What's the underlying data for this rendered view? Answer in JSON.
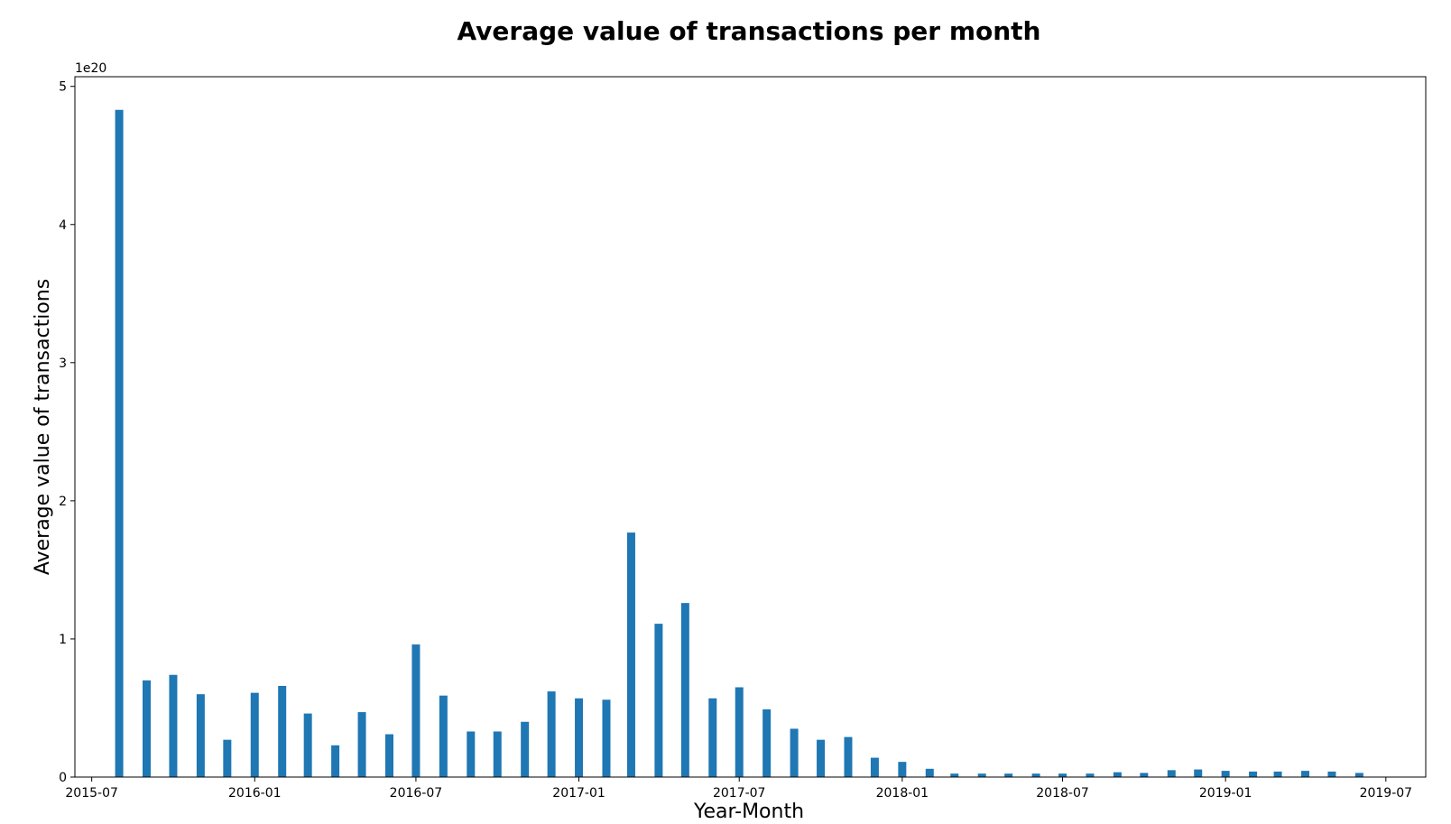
{
  "chart_data": {
    "type": "bar",
    "title": "Average value of transactions per month",
    "xlabel": "Year-Month",
    "ylabel": "Average value of transactions",
    "y_offset_label": "1e20",
    "y_multiplier": 1e+20,
    "ylim": [
      0,
      5.07
    ],
    "xlim": [
      "2015-06-12",
      "2019-08-15"
    ],
    "grid": false,
    "bar_color": "#1f77b4",
    "x_ticks": [
      {
        "date": "2015-07-01",
        "label": "2015-07"
      },
      {
        "date": "2016-01-01",
        "label": "2016-01"
      },
      {
        "date": "2016-07-01",
        "label": "2016-07"
      },
      {
        "date": "2017-01-01",
        "label": "2017-01"
      },
      {
        "date": "2017-07-01",
        "label": "2017-07"
      },
      {
        "date": "2018-01-01",
        "label": "2018-01"
      },
      {
        "date": "2018-07-01",
        "label": "2018-07"
      },
      {
        "date": "2019-01-01",
        "label": "2019-01"
      },
      {
        "date": "2019-07-01",
        "label": "2019-07"
      }
    ],
    "y_ticks": [
      0,
      1,
      2,
      3,
      4,
      5
    ],
    "series": [
      {
        "x": [
          "2015-08-01",
          "2015-09-01",
          "2015-10-01",
          "2015-11-01",
          "2015-12-01",
          "2016-01-01",
          "2016-02-01",
          "2016-03-01",
          "2016-04-01",
          "2016-05-01",
          "2016-06-01",
          "2016-07-01",
          "2016-08-01",
          "2016-09-01",
          "2016-10-01",
          "2016-11-01",
          "2016-12-01",
          "2017-01-01",
          "2017-02-01",
          "2017-03-01",
          "2017-04-01",
          "2017-05-01",
          "2017-06-01",
          "2017-07-01",
          "2017-08-01",
          "2017-09-01",
          "2017-10-01",
          "2017-11-01",
          "2017-12-01",
          "2018-01-01",
          "2018-02-01",
          "2018-03-01",
          "2018-04-01",
          "2018-05-01",
          "2018-06-01",
          "2018-07-01",
          "2018-08-01",
          "2018-09-01",
          "2018-10-01",
          "2018-11-01",
          "2018-12-01",
          "2019-01-01",
          "2019-02-01",
          "2019-03-01",
          "2019-04-01",
          "2019-05-01",
          "2019-06-01"
        ],
        "values": [
          4.83,
          0.7,
          0.74,
          0.6,
          0.27,
          0.61,
          0.66,
          0.46,
          0.23,
          0.47,
          0.31,
          0.96,
          0.59,
          0.33,
          0.33,
          0.4,
          0.62,
          0.57,
          0.56,
          1.77,
          1.11,
          1.26,
          0.57,
          0.65,
          0.49,
          0.35,
          0.27,
          0.29,
          0.14,
          0.11,
          0.06,
          0.025,
          0.025,
          0.025,
          0.025,
          0.025,
          0.025,
          0.035,
          0.03,
          0.05,
          0.055,
          0.045,
          0.04,
          0.04,
          0.045,
          0.04,
          0.03
        ]
      }
    ]
  }
}
